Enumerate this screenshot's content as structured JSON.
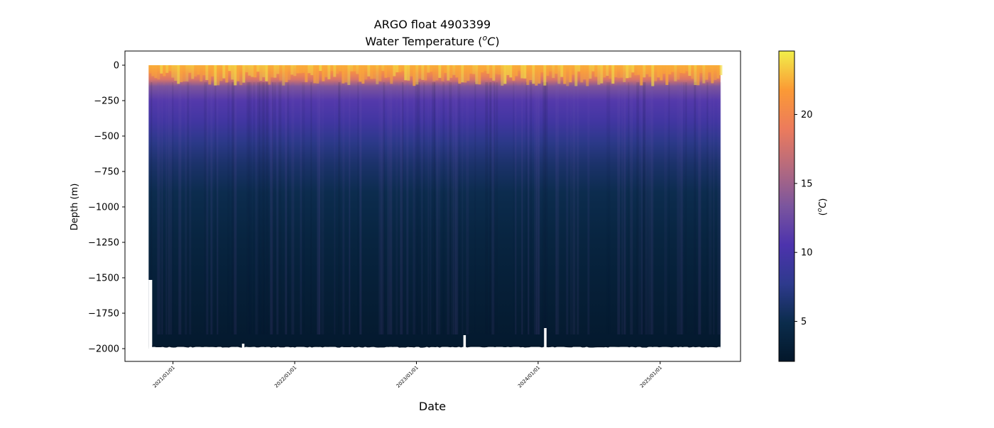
{
  "chart_data": {
    "type": "heatmap",
    "title": "ARGO float 4903399",
    "subtitle_prefix": "Water Temperature (",
    "subtitle_unit_sup": "o",
    "subtitle_unit_main": "C",
    "subtitle_suffix": ")",
    "xlabel": "Date",
    "ylabel": "Depth (m)",
    "x_start": "2020-10-20",
    "x_end": "2025-07-01",
    "xlim": [
      "2020-08-10",
      "2025-08-30"
    ],
    "ylim": [
      -2090,
      100
    ],
    "x_ticks": [
      {
        "date": "2021-01-01",
        "label": "2021/01/01"
      },
      {
        "date": "2022-01-01",
        "label": "2022/01/01"
      },
      {
        "date": "2023-01-01",
        "label": "2023/01/01"
      },
      {
        "date": "2024-01-01",
        "label": "2024/01/01"
      },
      {
        "date": "2025-01-01",
        "label": "2025/01/01"
      }
    ],
    "y_ticks": [
      {
        "value": 0,
        "label": "0"
      },
      {
        "value": -250,
        "label": "−250"
      },
      {
        "value": -500,
        "label": "−500"
      },
      {
        "value": -750,
        "label": "−750"
      },
      {
        "value": -1000,
        "label": "−1000"
      },
      {
        "value": -1250,
        "label": "−1250"
      },
      {
        "value": -1500,
        "label": "−1500"
      },
      {
        "value": -1750,
        "label": "−1750"
      },
      {
        "value": -2000,
        "label": "−2000"
      }
    ],
    "temperature_profile": [
      {
        "depth": 0,
        "temp": 22.5
      },
      {
        "depth": -50,
        "temp": 20.5
      },
      {
        "depth": -100,
        "temp": 18.0
      },
      {
        "depth": -150,
        "temp": 13.5
      },
      {
        "depth": -250,
        "temp": 11.0
      },
      {
        "depth": -400,
        "temp": 9.5
      },
      {
        "depth": -550,
        "temp": 7.5
      },
      {
        "depth": -700,
        "temp": 6.2
      },
      {
        "depth": -900,
        "temp": 5.0
      },
      {
        "depth": -1200,
        "temp": 4.0
      },
      {
        "depth": -1500,
        "temp": 3.3
      },
      {
        "depth": -1800,
        "temp": 2.8
      },
      {
        "depth": -2000,
        "temp": 2.4
      }
    ],
    "colorbar": {
      "label_prefix": "(",
      "label_sup": "o",
      "label_main": "C",
      "label_suffix": ")",
      "range": [
        2.1,
        24.6
      ],
      "ticks": [
        {
          "value": 5,
          "label": "5"
        },
        {
          "value": 10,
          "label": "10"
        },
        {
          "value": 15,
          "label": "15"
        },
        {
          "value": 20,
          "label": "20"
        }
      ],
      "colormap": [
        "#03172a",
        "#0b2c4c",
        "#2e3a8d",
        "#4c33ad",
        "#7b559e",
        "#b56a7e",
        "#ec7b5c",
        "#fb9a35",
        "#f1ef4a"
      ]
    },
    "gaps": [
      {
        "date": "2021-07-30",
        "depth_top": -1965
      },
      {
        "date": "2023-05-25",
        "depth_top": -1905
      },
      {
        "date": "2024-01-22",
        "depth_top": -1855
      }
    ],
    "grid": false
  }
}
